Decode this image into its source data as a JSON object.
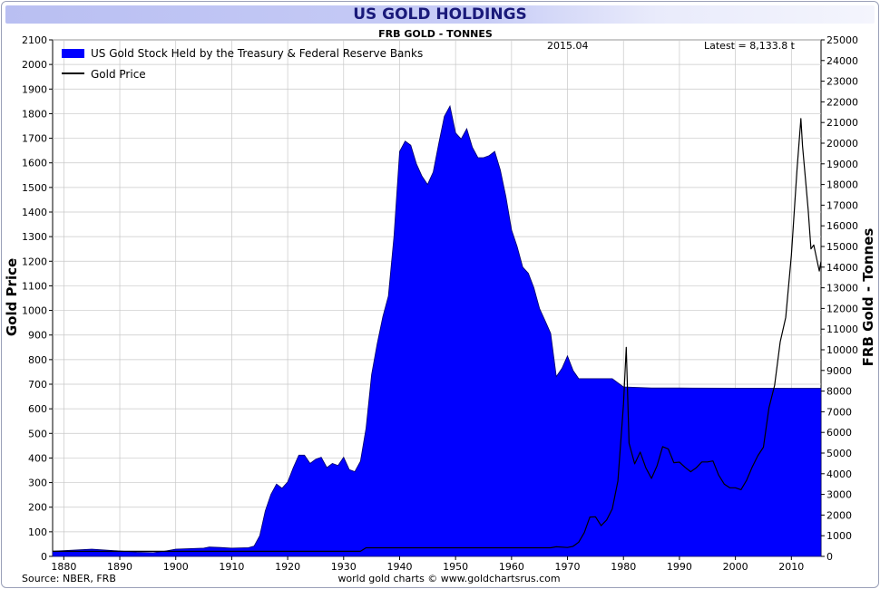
{
  "chart_data": {
    "type": "area",
    "title": "US GOLD HOLDINGS",
    "subtitle": "FRB GOLD - TONNES",
    "date_label": "2015.04",
    "latest_label": "Latest = 8,133.8 t",
    "source": "Source: NBER, FRB",
    "footer": "world gold charts © www.goldchartsrus.com",
    "ylabel_left": "Gold Price",
    "ylabel_right": "FRB Gold - Tonnes",
    "xlim": [
      1878,
      2015.3
    ],
    "ylim_left": [
      0,
      2100
    ],
    "ylim_right": [
      0,
      25000
    ],
    "x_ticks": [
      1880,
      1890,
      1900,
      1910,
      1920,
      1930,
      1940,
      1950,
      1960,
      1970,
      1980,
      1990,
      2000,
      2010
    ],
    "y_ticks_left": [
      0,
      100,
      200,
      300,
      400,
      500,
      600,
      700,
      800,
      900,
      1000,
      1100,
      1200,
      1300,
      1400,
      1500,
      1600,
      1700,
      1800,
      1900,
      2000,
      2100
    ],
    "y_ticks_right": [
      0,
      1000,
      2000,
      3000,
      4000,
      5000,
      6000,
      7000,
      8000,
      9000,
      10000,
      11000,
      12000,
      13000,
      14000,
      15000,
      16000,
      17000,
      18000,
      19000,
      20000,
      21000,
      22000,
      23000,
      24000,
      25000
    ],
    "grid": true,
    "legend_position": "top-left",
    "series": [
      {
        "name": "US Gold Stock Held by the Treasury & Federal Reserve Banks",
        "axis": "right",
        "color": "#0000ff",
        "style": "area",
        "x": [
          1878,
          1885,
          1889,
          1893,
          1896,
          1898,
          1900,
          1905,
          1906,
          1908,
          1910,
          1913,
          1914,
          1915,
          1916,
          1917,
          1918,
          1919,
          1920,
          1921,
          1922,
          1923,
          1924,
          1925,
          1926,
          1927,
          1928,
          1929,
          1930,
          1931,
          1932,
          1933,
          1934,
          1935,
          1936,
          1937,
          1938,
          1939,
          1940,
          1941,
          1942,
          1943,
          1944,
          1945,
          1946,
          1947,
          1948,
          1949,
          1950,
          1951,
          1952,
          1953,
          1954,
          1955,
          1956,
          1957,
          1958,
          1959,
          1960,
          1961,
          1962,
          1963,
          1964,
          1965,
          1966,
          1967,
          1968,
          1969,
          1970,
          1971,
          1972,
          1975,
          1978,
          1980,
          1985,
          1990,
          2000,
          2010,
          2015.3
        ],
        "values": [
          250,
          350,
          280,
          200,
          180,
          250,
          350,
          400,
          450,
          430,
          400,
          420,
          500,
          1000,
          2200,
          3000,
          3500,
          3300,
          3600,
          4300,
          4900,
          4900,
          4500,
          4700,
          4800,
          4300,
          4500,
          4400,
          4800,
          4200,
          4100,
          4600,
          6200,
          8800,
          10300,
          11600,
          12600,
          15500,
          19600,
          20100,
          19900,
          19000,
          18400,
          18000,
          18600,
          20000,
          21300,
          21800,
          20500,
          20200,
          20700,
          19800,
          19300,
          19300,
          19400,
          19600,
          18700,
          17400,
          15800,
          15000,
          14000,
          13700,
          13000,
          12000,
          11400,
          10800,
          8700,
          9100,
          9700,
          9000,
          8600,
          8600,
          8600,
          8200,
          8150,
          8150,
          8140,
          8135,
          8133.8
        ]
      },
      {
        "name": "Gold Price",
        "axis": "left",
        "color": "#000000",
        "style": "line",
        "x": [
          1878,
          1933,
          1934,
          1967,
          1968,
          1970,
          1971,
          1972,
          1973,
          1974,
          1975,
          1976,
          1977,
          1978,
          1979,
          1980,
          1980.5,
          1981,
          1982,
          1983,
          1984,
          1985,
          1986,
          1987,
          1988,
          1989,
          1990,
          1991,
          1992,
          1993,
          1994,
          1995,
          1996,
          1997,
          1998,
          1999,
          2000,
          2001,
          2002,
          2003,
          2004,
          2005,
          2006,
          2007,
          2008,
          2009,
          2010,
          2011,
          2011.7,
          2012,
          2013,
          2013.5,
          2014,
          2015,
          2015.3
        ],
        "values": [
          20.67,
          20.67,
          35,
          35,
          39,
          36,
          41,
          58,
          97,
          160,
          161,
          125,
          148,
          193,
          307,
          615,
          850,
          460,
          376,
          424,
          360,
          317,
          368,
          446,
          437,
          381,
          383,
          362,
          344,
          360,
          384,
          384,
          388,
          331,
          294,
          279,
          279,
          271,
          310,
          363,
          409,
          444,
          604,
          695,
          872,
          972,
          1224,
          1571,
          1780,
          1669,
          1411,
          1250,
          1266,
          1160,
          1200
        ]
      }
    ]
  }
}
